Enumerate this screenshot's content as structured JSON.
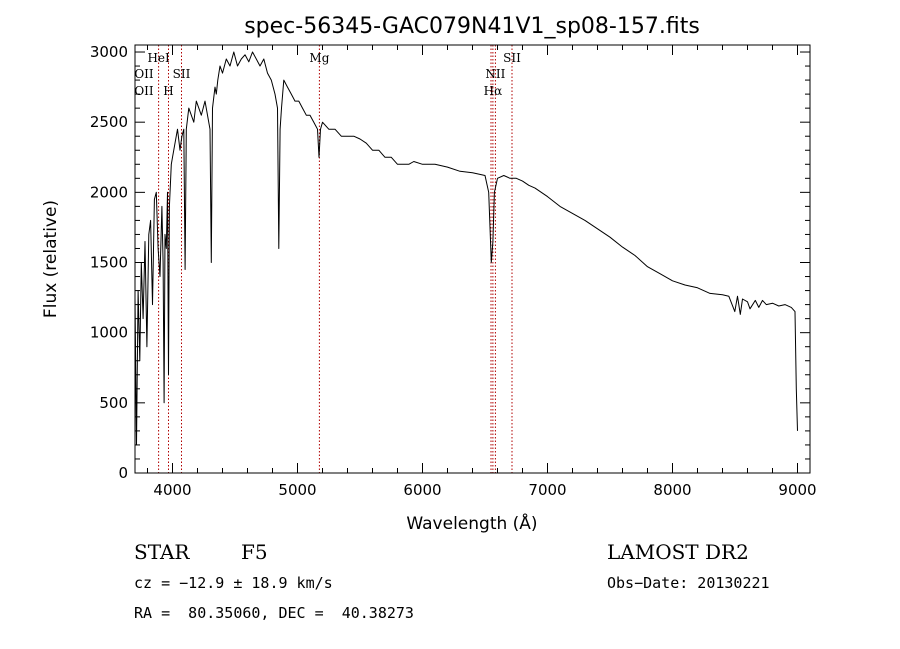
{
  "chart_data": {
    "type": "line",
    "title": "spec-56345-GAC079N41V1_sp08-157.fits",
    "xlabel": "Wavelength (Å)",
    "ylabel": "Flux (relative)",
    "xlim": [
      3700,
      9100
    ],
    "ylim": [
      0,
      3050
    ],
    "x_ticks": [
      4000,
      5000,
      6000,
      7000,
      8000,
      9000
    ],
    "y_ticks": [
      0,
      500,
      1000,
      1500,
      2000,
      2500,
      3000
    ],
    "series": [
      {
        "name": "flux",
        "x": [
          3700,
          3712,
          3725,
          3738,
          3750,
          3765,
          3780,
          3795,
          3810,
          3825,
          3840,
          3855,
          3870,
          3885,
          3900,
          3915,
          3925,
          3933,
          3940,
          3950,
          3960,
          3968,
          3975,
          3990,
          4000,
          4020,
          4040,
          4060,
          4075,
          4090,
          4101,
          4110,
          4130,
          4150,
          4170,
          4190,
          4210,
          4230,
          4260,
          4280,
          4300,
          4310,
          4320,
          4340,
          4350,
          4362,
          4380,
          4400,
          4430,
          4460,
          4490,
          4520,
          4550,
          4580,
          4610,
          4640,
          4670,
          4700,
          4730,
          4760,
          4790,
          4820,
          4840,
          4850,
          4861,
          4872,
          4890,
          4920,
          4950,
          4980,
          5010,
          5040,
          5070,
          5100,
          5130,
          5160,
          5172,
          5184,
          5200,
          5250,
          5300,
          5350,
          5400,
          5450,
          5500,
          5550,
          5600,
          5650,
          5700,
          5750,
          5800,
          5850,
          5890,
          5930,
          6000,
          6100,
          6200,
          6300,
          6400,
          6450,
          6500,
          6530,
          6550,
          6563,
          6575,
          6600,
          6650,
          6700,
          6750,
          6800,
          6850,
          6900,
          7000,
          7100,
          7200,
          7300,
          7400,
          7500,
          7600,
          7700,
          7800,
          7900,
          8000,
          8100,
          8200,
          8300,
          8400,
          8450,
          8498,
          8520,
          8542,
          8560,
          8600,
          8620,
          8662,
          8690,
          8720,
          8750,
          8800,
          8850,
          8900,
          8950,
          8980,
          8990,
          9000
        ],
        "y": [
          1250,
          200,
          1300,
          800,
          1500,
          1100,
          1650,
          900,
          1700,
          1800,
          1200,
          1950,
          2000,
          1600,
          1400,
          1900,
          1500,
          500,
          1700,
          1600,
          2000,
          700,
          1900,
          2200,
          2250,
          2350,
          2450,
          2300,
          2400,
          2450,
          1450,
          2450,
          2600,
          2550,
          2500,
          2650,
          2600,
          2550,
          2650,
          2550,
          2450,
          1500,
          2600,
          2750,
          2700,
          2800,
          2900,
          2850,
          2950,
          2900,
          3000,
          2900,
          2950,
          2980,
          2930,
          3000,
          2950,
          2900,
          2950,
          2850,
          2800,
          2700,
          2600,
          1600,
          2450,
          2600,
          2800,
          2750,
          2700,
          2650,
          2650,
          2600,
          2550,
          2550,
          2500,
          2450,
          2250,
          2450,
          2500,
          2450,
          2450,
          2400,
          2400,
          2400,
          2380,
          2350,
          2300,
          2300,
          2250,
          2250,
          2200,
          2200,
          2200,
          2220,
          2200,
          2200,
          2180,
          2150,
          2140,
          2130,
          2120,
          2000,
          1500,
          1650,
          2000,
          2100,
          2120,
          2100,
          2100,
          2080,
          2050,
          2030,
          1970,
          1900,
          1850,
          1800,
          1740,
          1680,
          1610,
          1550,
          1470,
          1420,
          1370,
          1340,
          1320,
          1280,
          1270,
          1260,
          1150,
          1260,
          1130,
          1240,
          1220,
          1170,
          1230,
          1180,
          1230,
          1200,
          1210,
          1190,
          1200,
          1180,
          1150,
          600,
          300
        ]
      }
    ],
    "line_markers": [
      {
        "label": "OII",
        "wavelength": 3727,
        "row": 1
      },
      {
        "label": "OII",
        "wavelength": 3727,
        "row": 2
      },
      {
        "label": "HeI",
        "wavelength": 3889,
        "row": 0
      },
      {
        "label": "H",
        "wavelength": 3968,
        "row": 2
      },
      {
        "label": "SII",
        "wavelength": 4072,
        "row": 1
      },
      {
        "label": "Mg",
        "wavelength": 5175,
        "row": 0
      },
      {
        "label": "NII",
        "wavelength": 6583,
        "row": 1
      },
      {
        "label": "Hα",
        "wavelength": 6563,
        "row": 2
      },
      {
        "label": "SII",
        "wavelength": 6716,
        "row": 0
      }
    ],
    "marker_lines": [
      3889,
      3968,
      4072,
      5175,
      6548,
      6563,
      6583,
      6716
    ],
    "colors": {
      "spectrum": "#000000",
      "marker": "#b00000",
      "axes": "#000000"
    }
  },
  "info": {
    "object_class": "STAR",
    "subclass": "F5",
    "survey": "LAMOST DR2",
    "velocity": "cz = −12.9 ± 18.9 km/s",
    "obs_date": "Obs−Date: 20130221",
    "coords": "RA =  80.35060, DEC =  40.38273"
  }
}
